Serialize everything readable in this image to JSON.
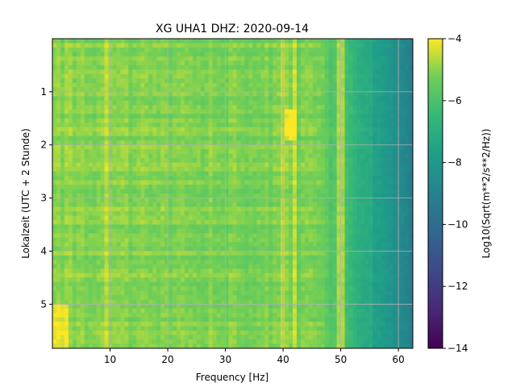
{
  "chart_data": {
    "type": "heatmap",
    "title": "XG UHA1  DHZ: 2020-09-14",
    "xlabel": "Frequency [Hz]",
    "ylabel": "Lokalzeit (UTC + 2 Stunde)",
    "xlim": [
      0.0,
      62.5
    ],
    "ylim": [
      5.83,
      0.0
    ],
    "x_ticks": [
      10,
      20,
      30,
      40,
      50,
      60
    ],
    "y_ticks": [
      1,
      2,
      3,
      4,
      5
    ],
    "grid": true,
    "colorbar": {
      "label": "Log10(Sqrt(m**2/s**2/Hz))",
      "range": [
        -14,
        -4
      ],
      "ticks": [
        -4,
        -6,
        -8,
        -10,
        -12,
        -14
      ],
      "colormap": "viridis"
    },
    "features": [
      {
        "kind": "broadband_level",
        "x_range": [
          0,
          47
        ],
        "value": -5.0
      },
      {
        "kind": "rolloff",
        "x_range": [
          47,
          62.5
        ],
        "from": -5.5,
        "to": -9.2
      },
      {
        "kind": "spectral_line",
        "x": 9.6,
        "value": -4.5
      },
      {
        "kind": "spectral_line",
        "x": 42.0,
        "value": -4.6
      },
      {
        "kind": "spectral_line",
        "x": 50.0,
        "value": -4.7
      },
      {
        "kind": "spectral_line",
        "x": 40.3,
        "value": -4.8
      },
      {
        "kind": "burst",
        "x_range": [
          40.0,
          42.5
        ],
        "y_range": [
          1.3,
          1.95
        ],
        "value": -4.0
      },
      {
        "kind": "burst",
        "x_range": [
          0.0,
          3.0
        ],
        "y_range": [
          5.0,
          5.83
        ],
        "value": -4.2
      }
    ]
  }
}
